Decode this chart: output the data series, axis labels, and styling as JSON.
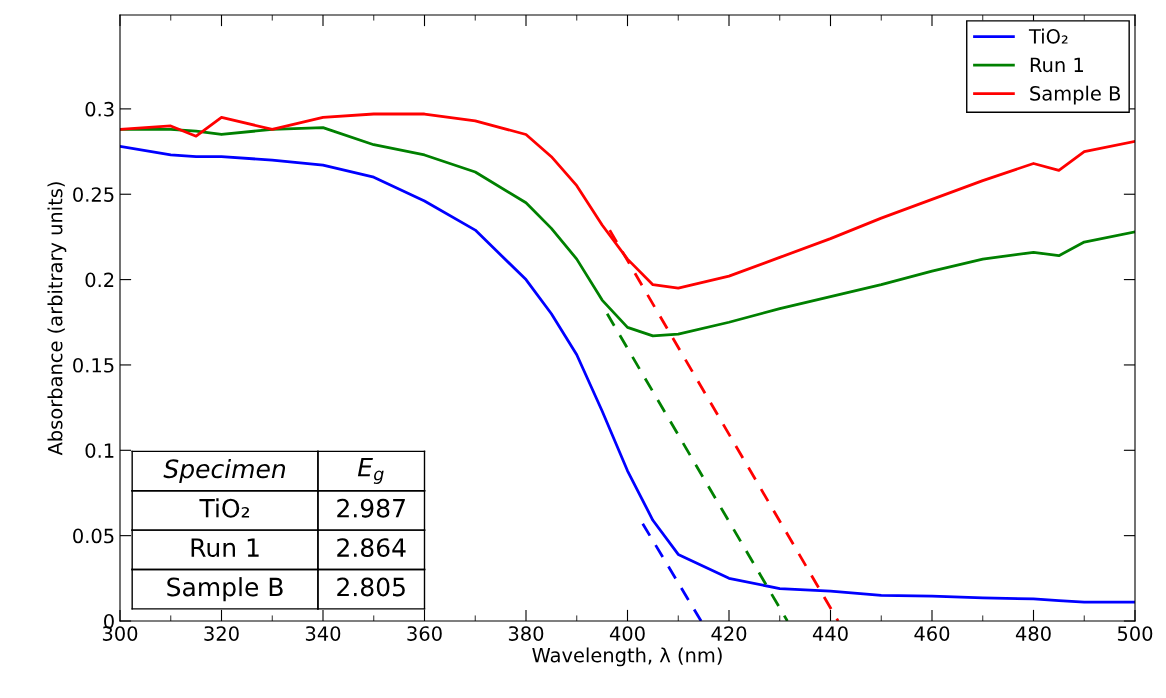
{
  "chart_data": {
    "type": "line",
    "xlabel": "Wavelength, λ (nm)",
    "ylabel": "Absorbance (arbitrary units)",
    "xlim": [
      300,
      500
    ],
    "ylim": [
      0,
      0.355
    ],
    "xticks": [
      300,
      320,
      340,
      360,
      380,
      400,
      420,
      440,
      460,
      480,
      500
    ],
    "yticks": [
      0,
      0.05,
      0.1,
      0.15,
      0.2,
      0.25,
      0.3
    ],
    "grid": false,
    "legend": "top right",
    "marker": "none",
    "line_style": "solid",
    "x": [
      300,
      310,
      315,
      320,
      330,
      340,
      350,
      360,
      370,
      380,
      385,
      390,
      395,
      400,
      405,
      410,
      420,
      430,
      440,
      450,
      460,
      470,
      480,
      485,
      490,
      500
    ],
    "series": [
      {
        "name": "TiO₂",
        "color": "#0000ff",
        "values": [
          0.278,
          0.273,
          0.272,
          0.272,
          0.27,
          0.267,
          0.26,
          0.246,
          0.229,
          0.2,
          0.18,
          0.156,
          0.123,
          0.088,
          0.059,
          0.039,
          0.025,
          0.019,
          0.0175,
          0.015,
          0.0146,
          0.0135,
          0.013,
          0.012,
          0.011,
          0.011
        ]
      },
      {
        "name": "Run 1",
        "color": "#008000",
        "values": [
          0.288,
          0.288,
          0.287,
          0.285,
          0.288,
          0.289,
          0.279,
          0.273,
          0.263,
          0.245,
          0.23,
          0.212,
          0.188,
          0.172,
          0.167,
          0.168,
          0.175,
          0.183,
          0.19,
          0.197,
          0.205,
          0.212,
          0.216,
          0.214,
          0.222,
          0.228
        ]
      },
      {
        "name": "Sample B",
        "color": "#ff0000",
        "values": [
          0.288,
          0.29,
          0.284,
          0.295,
          0.288,
          0.295,
          0.297,
          0.297,
          0.293,
          0.285,
          0.272,
          0.255,
          0.232,
          0.212,
          0.197,
          0.195,
          0.202,
          0.213,
          0.224,
          0.236,
          0.247,
          0.258,
          0.268,
          0.264,
          0.275,
          0.281
        ]
      },
      {
        "type": "line",
        "line_style": "dashed",
        "color": "#0000ff",
        "x": [
          403,
          414.5
        ],
        "values": [
          0.057,
          0
        ]
      },
      {
        "type": "line",
        "line_style": "dashed",
        "color": "#008000",
        "x": [
          396,
          431.5
        ],
        "values": [
          0.18,
          0
        ]
      },
      {
        "type": "line",
        "line_style": "dashed",
        "color": "#ff0000",
        "x": [
          396.5,
          441.5
        ],
        "values": [
          0.229,
          0
        ]
      }
    ],
    "annotations": [
      "Specimen",
      "E$_{g}$",
      "TiO₂",
      "2.987",
      "Run 1",
      "2.864",
      "Sample B",
      "2.805"
    ]
  }
}
